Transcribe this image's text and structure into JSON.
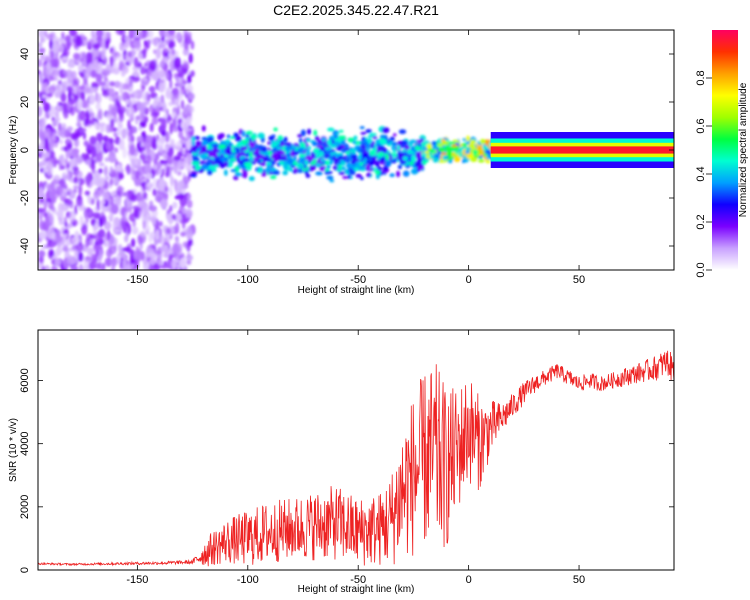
{
  "figure_title": "C2E2.2025.345.22.47.R21",
  "colorbar": {
    "label": "Normalized spectral amplitude",
    "ticks": [
      "0.0",
      "0.2",
      "0.4",
      "0.6",
      "0.8"
    ],
    "tick_values": [
      0.0,
      0.2,
      0.4,
      0.6,
      0.8
    ],
    "range": [
      0,
      1
    ],
    "stops": [
      "#ffffff",
      "#c8a0ff",
      "#7a00ff",
      "#1000ff",
      "#00a0ff",
      "#00ffd0",
      "#00ff40",
      "#a0ff00",
      "#ffff00",
      "#ffa000",
      "#ff3000",
      "#ff0060"
    ]
  },
  "chart_data": [
    {
      "type": "heatmap",
      "title": "",
      "xlabel": "Height of straight line (km)",
      "ylabel": "Frequency (Hz)",
      "xlim": [
        -195,
        93
      ],
      "ylim": [
        -50,
        50
      ],
      "xticks": [
        -150,
        -100,
        -50,
        0,
        50
      ],
      "xtick_labels": [
        "-150",
        "-100",
        "-50",
        "0",
        "50"
      ],
      "yticks": [
        -40,
        -20,
        0,
        20,
        40
      ],
      "ytick_labels": [
        "-40",
        "-20",
        "0",
        "20",
        "40"
      ],
      "regions": [
        {
          "name": "noise",
          "x_range": [
            -195,
            -125
          ],
          "y_range": [
            -50,
            50
          ],
          "amplitude": 0.15
        },
        {
          "name": "spread-signal",
          "x_range": [
            -125,
            -20
          ],
          "y_center": -2,
          "y_halfwidth": 8,
          "amplitude": 0.35
        },
        {
          "name": "narrowing-signal",
          "x_range": [
            -20,
            10
          ],
          "y_center": 0,
          "y_halfwidth": 4,
          "amplitude": 0.6
        },
        {
          "name": "steady-tone",
          "x_range": [
            10,
            93
          ],
          "y_center": 0,
          "y_halfwidth": 1.5,
          "amplitude": 0.95
        }
      ]
    },
    {
      "type": "line",
      "title": "",
      "xlabel": "Height of straight line (km)",
      "ylabel": "SNR (10 * v/v)",
      "xlim": [
        -195,
        93
      ],
      "ylim": [
        0,
        7600
      ],
      "xticks": [
        -150,
        -100,
        -50,
        0,
        50
      ],
      "xtick_labels": [
        "-150",
        "-100",
        "-50",
        "0",
        "50"
      ],
      "yticks": [
        0,
        2000,
        4000,
        6000
      ],
      "ytick_labels": [
        "0",
        "2000",
        "4000",
        "6000"
      ],
      "series": [
        {
          "name": "SNR",
          "color": "#ee2222",
          "x": [
            -195,
            -180,
            -160,
            -140,
            -125,
            -118,
            -110,
            -100,
            -90,
            -80,
            -70,
            -60,
            -50,
            -40,
            -35,
            -30,
            -25,
            -20,
            -15,
            -10,
            -5,
            0,
            5,
            10,
            15,
            20,
            25,
            30,
            35,
            40,
            45,
            50,
            55,
            60,
            65,
            70,
            75,
            80,
            85,
            90,
            93
          ],
          "values": [
            200,
            180,
            200,
            220,
            250,
            600,
            900,
            1000,
            1200,
            1300,
            1400,
            1500,
            1200,
            1300,
            1600,
            2500,
            3000,
            3500,
            3600,
            3200,
            3800,
            4500,
            4000,
            4500,
            4800,
            5200,
            5600,
            5900,
            6100,
            6300,
            6100,
            5900,
            6000,
            5900,
            6000,
            6100,
            6200,
            6300,
            6400,
            6600,
            6300
          ],
          "noise": [
            30,
            30,
            40,
            50,
            60,
            500,
            700,
            900,
            1000,
            1000,
            1100,
            1200,
            1100,
            1200,
            1500,
            2200,
            2600,
            2800,
            3000,
            2600,
            2000,
            1800,
            1500,
            900,
            500,
            400,
            350,
            300,
            250,
            250,
            250,
            250,
            250,
            250,
            250,
            300,
            300,
            350,
            400,
            450,
            450
          ]
        }
      ]
    }
  ]
}
